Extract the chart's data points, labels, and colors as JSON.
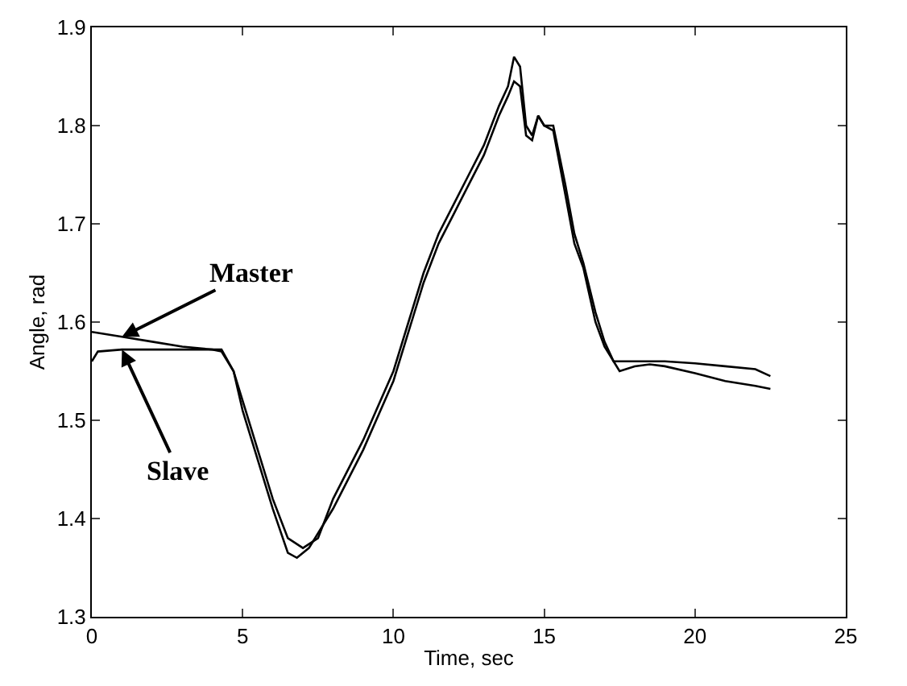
{
  "chart_data": {
    "type": "line",
    "xlabel": "Time, sec",
    "ylabel": "Angle, rad",
    "xlim": [
      0,
      25
    ],
    "xticks": [
      0,
      5,
      10,
      15,
      20,
      25
    ],
    "ylim": [
      1.3,
      1.9
    ],
    "yticks": [
      1.3,
      1.4,
      1.5,
      1.6,
      1.7,
      1.8,
      1.9
    ],
    "grid": false,
    "marker": "none",
    "line_style": "solid",
    "series": [
      {
        "color": "#000000",
        "x": [
          0,
          1,
          2,
          3,
          4,
          4.3,
          4.7,
          5,
          5.5,
          6,
          6.5,
          7,
          7.5,
          8,
          9,
          10,
          10.5,
          11,
          11.5,
          12,
          12.5,
          13,
          13.5,
          13.8,
          14,
          14.2,
          14.4,
          14.6,
          14.8,
          15,
          15.3,
          15.7,
          16,
          16.3,
          16.7,
          17,
          17.3,
          17.5,
          18,
          18.5,
          19,
          20,
          21,
          22,
          22.5
        ],
        "values": [
          1.59,
          1.585,
          1.58,
          1.575,
          1.572,
          1.57,
          1.55,
          1.52,
          1.47,
          1.42,
          1.38,
          1.37,
          1.38,
          1.42,
          1.48,
          1.55,
          1.6,
          1.65,
          1.69,
          1.72,
          1.75,
          1.78,
          1.82,
          1.84,
          1.87,
          1.86,
          1.8,
          1.79,
          1.81,
          1.8,
          1.8,
          1.74,
          1.69,
          1.66,
          1.61,
          1.58,
          1.56,
          1.55,
          1.555,
          1.557,
          1.555,
          1.548,
          1.54,
          1.535,
          1.532
        ]
      },
      {
        "color": "#000000",
        "x": [
          0,
          0.2,
          1,
          4.3,
          4.7,
          5,
          5.5,
          6,
          6.5,
          6.8,
          7.2,
          8,
          9,
          10,
          10.5,
          11,
          11.5,
          12,
          12.5,
          13,
          13.5,
          13.8,
          14,
          14.2,
          14.4,
          14.6,
          14.8,
          15,
          15.3,
          15.7,
          16,
          16.3,
          16.7,
          17,
          17.3,
          17.6,
          18,
          19,
          20,
          21,
          22,
          22.5
        ],
        "values": [
          1.56,
          1.57,
          1.572,
          1.572,
          1.55,
          1.51,
          1.46,
          1.41,
          1.365,
          1.36,
          1.37,
          1.41,
          1.47,
          1.54,
          1.59,
          1.64,
          1.68,
          1.71,
          1.74,
          1.77,
          1.81,
          1.83,
          1.845,
          1.84,
          1.79,
          1.785,
          1.81,
          1.8,
          1.795,
          1.73,
          1.68,
          1.655,
          1.6,
          1.575,
          1.56,
          1.56,
          1.56,
          1.56,
          1.558,
          1.555,
          1.552,
          1.545
        ]
      }
    ],
    "annotations": [
      {
        "text": "Master",
        "x": 1,
        "y": 1.585
      },
      {
        "text": "Slave",
        "x": 1,
        "y": 1.572
      }
    ]
  }
}
